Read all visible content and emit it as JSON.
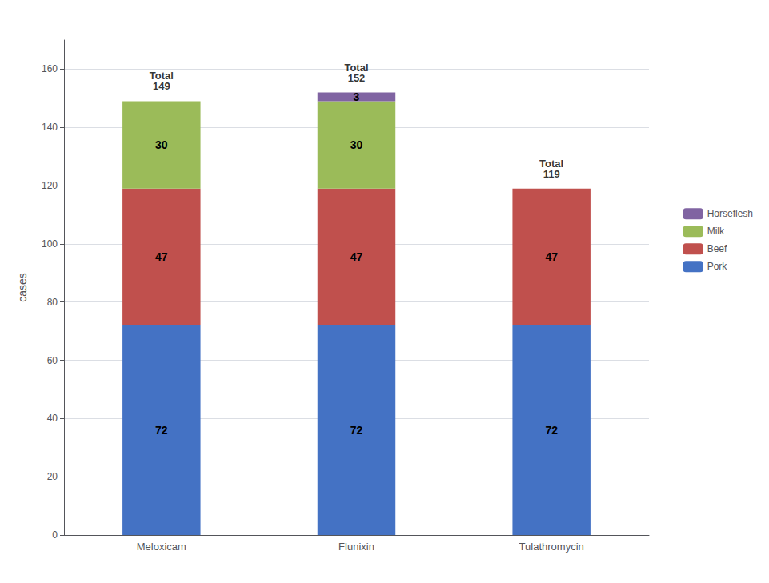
{
  "chart_data": {
    "type": "bar",
    "stacked": true,
    "categories": [
      "Meloxicam",
      "Flunixin",
      "Tulathromycin"
    ],
    "series": [
      {
        "name": "Pork",
        "color": "#4472c4",
        "values": [
          72,
          72,
          72
        ]
      },
      {
        "name": "Beef",
        "color": "#c0504d",
        "values": [
          47,
          47,
          47
        ]
      },
      {
        "name": "Milk",
        "color": "#9bbb59",
        "values": [
          30,
          30,
          0
        ]
      },
      {
        "name": "Horseflesh",
        "color": "#8064a2",
        "values": [
          0,
          3,
          0
        ]
      }
    ],
    "totals": {
      "label": "Total",
      "values": [
        149,
        152,
        119
      ]
    },
    "ylabel": "cases",
    "ylim": [
      0,
      170
    ],
    "yticks": [
      0,
      20,
      40,
      60,
      80,
      100,
      120,
      140,
      160
    ],
    "grid": true,
    "legend": "right",
    "data_labels": true
  }
}
